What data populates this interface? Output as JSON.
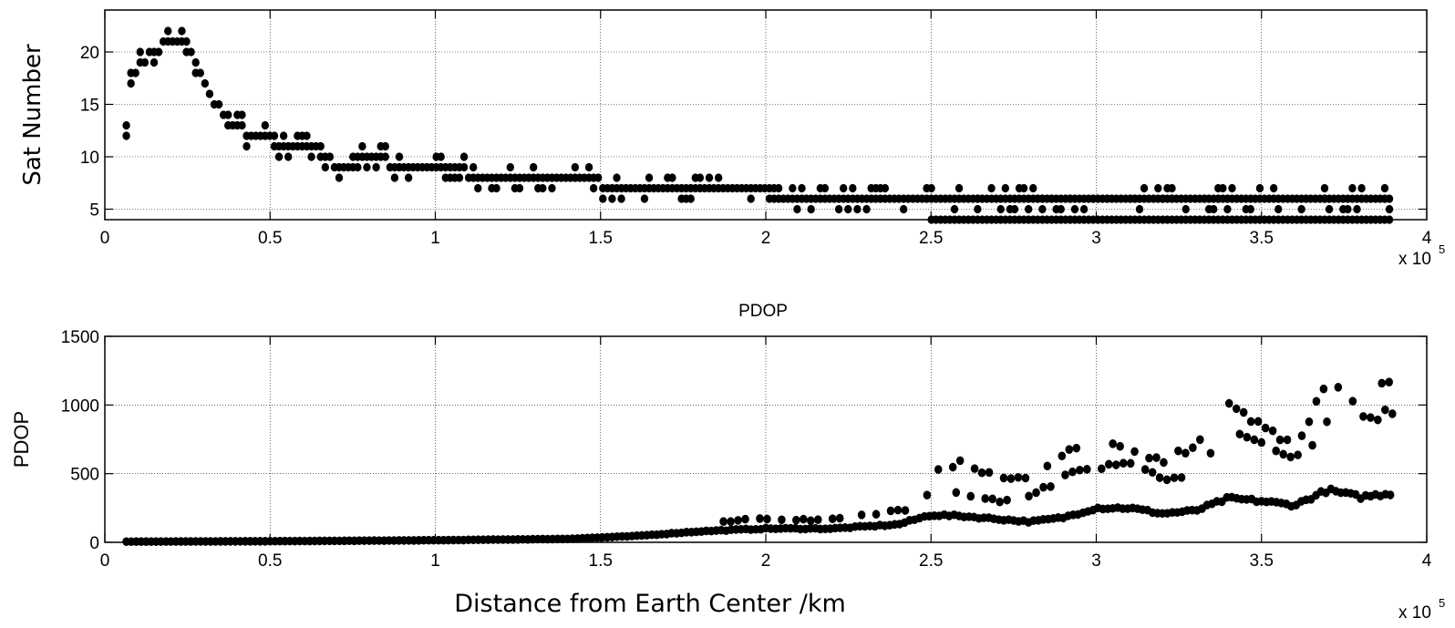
{
  "chart_data": [
    {
      "type": "scatter",
      "title": "",
      "xlabel": "",
      "ylabel": "Sat Number",
      "xlim": [
        0,
        400000
      ],
      "ylim": [
        4,
        24
      ],
      "grid": true,
      "x_exponent_label": "x 10",
      "x_exponent_power": "5",
      "x_ticks": [
        0,
        50000,
        100000,
        150000,
        200000,
        250000,
        300000,
        350000,
        400000
      ],
      "x_tick_labels": [
        "0",
        "0.5",
        "1",
        "1.5",
        "2",
        "2.5",
        "3",
        "3.5",
        "4"
      ],
      "y_ticks": [
        5,
        10,
        15,
        20
      ],
      "y_tick_labels": [
        "5",
        "10",
        "15",
        "20"
      ],
      "profile_km": [
        6500,
        8000,
        10000,
        15000,
        20000,
        24000,
        28000,
        32000,
        38000,
        45000,
        55000,
        64000,
        70000,
        80000,
        90000,
        100000,
        110000,
        120000,
        135000,
        150000,
        160000,
        175000,
        190000,
        200000,
        215000,
        230000,
        245000,
        255000,
        300000,
        390000
      ],
      "profile_sat": [
        13,
        17,
        19,
        20,
        21,
        22,
        19,
        16,
        13,
        12,
        11,
        11,
        9,
        10,
        9,
        9,
        8.5,
        8,
        8,
        7.5,
        7,
        7,
        6.5,
        6.5,
        6,
        6,
        6,
        5.5,
        5.5,
        5.5
      ],
      "spread": 1
    },
    {
      "type": "scatter",
      "title": "PDOP",
      "xlabel": "Distance from Earth Center /km",
      "ylabel": "PDOP",
      "xlim": [
        0,
        400000
      ],
      "ylim": [
        0,
        1500
      ],
      "grid": true,
      "x_exponent_label": "x 10",
      "x_exponent_power": "5",
      "x_ticks": [
        0,
        50000,
        100000,
        150000,
        200000,
        250000,
        300000,
        350000,
        400000
      ],
      "x_tick_labels": [
        "0",
        "0.5",
        "1",
        "1.5",
        "2",
        "2.5",
        "3",
        "3.5",
        "4"
      ],
      "y_ticks": [
        0,
        500,
        1000,
        1500
      ],
      "y_tick_labels": [
        "0",
        "500",
        "1000",
        "1500"
      ],
      "series": [
        {
          "x_km": [
            6500,
            50000,
            100000,
            140000,
            160000,
            180000,
            200000,
            220000,
            240000,
            250000,
            260000,
            270000,
            280000,
            290000,
            300000,
            310000,
            320000,
            330000,
            340000,
            350000,
            360000,
            370000,
            380000,
            390000
          ],
          "pdop": [
            5,
            8,
            15,
            25,
            45,
            80,
            100,
            100,
            130,
            200,
            190,
            170,
            150,
            180,
            250,
            250,
            210,
            230,
            320,
            300,
            270,
            380,
            330,
            360
          ]
        },
        {
          "x_km": [
            185000,
            200000,
            215000,
            230000,
            245000,
            250000,
            260000,
            270000,
            280000,
            290000,
            300000,
            310000,
            320000,
            330000,
            340000,
            350000,
            360000,
            370000,
            380000,
            390000
          ],
          "pdop": [
            150,
            175,
            160,
            200,
            250,
            380,
            340,
            300,
            330,
            480,
            550,
            600,
            450,
            520,
            780,
            720,
            600,
            850,
            900,
            950
          ]
        },
        {
          "x_km": [
            250000,
            260000,
            270000,
            280000,
            290000,
            300000,
            310000,
            320000,
            330000,
            340000,
            350000,
            360000,
            370000,
            380000,
            390000
          ],
          "pdop": [
            540,
            580,
            480,
            450,
            650,
            760,
            650,
            600,
            700,
            980,
            850,
            700,
            1150,
            1000,
            1180
          ]
        }
      ]
    }
  ]
}
